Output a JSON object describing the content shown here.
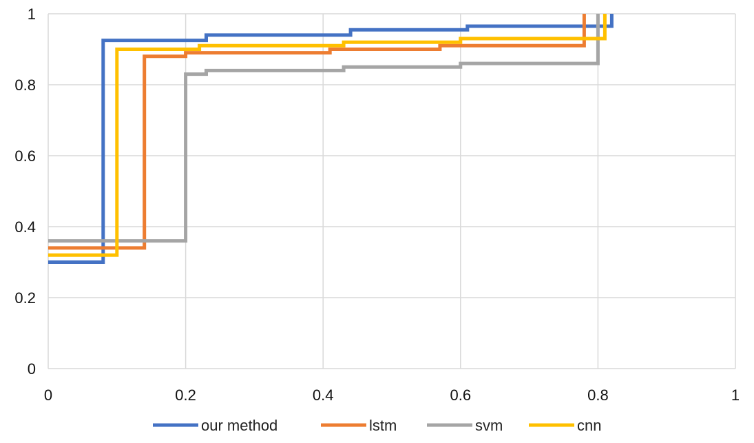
{
  "chart_data": {
    "type": "line",
    "step": true,
    "xlim": [
      0,
      1
    ],
    "ylim": [
      0,
      1
    ],
    "x_ticks": [
      0,
      0.2,
      0.4,
      0.6,
      0.8,
      1
    ],
    "y_ticks": [
      0,
      0.2,
      0.4,
      0.6,
      0.8,
      1
    ],
    "x_tick_labels": [
      "0",
      "0.2",
      "0.4",
      "0.6",
      "0.8",
      "1"
    ],
    "y_tick_labels": [
      "0",
      "0.2",
      "0.4",
      "0.6",
      "0.8",
      "1"
    ],
    "grid": true,
    "legend_position": "bottom",
    "series": [
      {
        "name": "our method",
        "color": "#4472c4",
        "points": [
          [
            0,
            0.3
          ],
          [
            0.08,
            0.3
          ],
          [
            0.08,
            0.925
          ],
          [
            0.23,
            0.925
          ],
          [
            0.23,
            0.94
          ],
          [
            0.44,
            0.94
          ],
          [
            0.44,
            0.955
          ],
          [
            0.61,
            0.955
          ],
          [
            0.61,
            0.965
          ],
          [
            0.82,
            0.965
          ],
          [
            0.82,
            1.0
          ]
        ]
      },
      {
        "name": "lstm",
        "color": "#ed7d31",
        "points": [
          [
            0,
            0.34
          ],
          [
            0.14,
            0.34
          ],
          [
            0.14,
            0.88
          ],
          [
            0.2,
            0.88
          ],
          [
            0.2,
            0.89
          ],
          [
            0.41,
            0.89
          ],
          [
            0.41,
            0.9
          ],
          [
            0.57,
            0.9
          ],
          [
            0.57,
            0.91
          ],
          [
            0.78,
            0.91
          ],
          [
            0.78,
            1.0
          ]
        ]
      },
      {
        "name": "svm",
        "color": "#a5a5a5",
        "points": [
          [
            0,
            0.36
          ],
          [
            0.2,
            0.36
          ],
          [
            0.2,
            0.83
          ],
          [
            0.23,
            0.83
          ],
          [
            0.23,
            0.84
          ],
          [
            0.43,
            0.84
          ],
          [
            0.43,
            0.85
          ],
          [
            0.6,
            0.85
          ],
          [
            0.6,
            0.86
          ],
          [
            0.8,
            0.86
          ],
          [
            0.8,
            1.0
          ]
        ]
      },
      {
        "name": "cnn",
        "color": "#ffc000",
        "points": [
          [
            0,
            0.32
          ],
          [
            0.1,
            0.32
          ],
          [
            0.1,
            0.9
          ],
          [
            0.22,
            0.9
          ],
          [
            0.22,
            0.91
          ],
          [
            0.43,
            0.91
          ],
          [
            0.43,
            0.92
          ],
          [
            0.6,
            0.92
          ],
          [
            0.6,
            0.93
          ],
          [
            0.81,
            0.93
          ],
          [
            0.81,
            1.0
          ]
        ]
      }
    ]
  }
}
